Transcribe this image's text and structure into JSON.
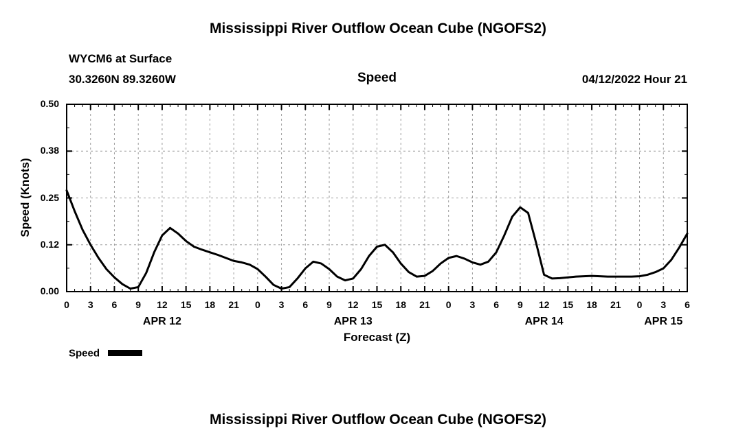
{
  "header": {
    "title": "Mississippi River Outflow Ocean Cube (NGOFS2)",
    "station": "WYCM6 at Surface",
    "coords": "30.3260N  89.3260W",
    "subtitle": "Speed",
    "datetime": "04/12/2022 Hour 21"
  },
  "footer": {
    "title": "Mississippi River Outflow Ocean Cube (NGOFS2)"
  },
  "chart_data": {
    "type": "line",
    "title": "Speed",
    "xlabel": "Forecast (Z)",
    "ylabel": "Speed (Knots)",
    "xlim": [
      0,
      78
    ],
    "ylim": [
      0,
      0.5
    ],
    "grid": true,
    "grid_color": "#9a9a9a",
    "line_color": "#000000",
    "yticks": {
      "values": [
        0,
        0.125,
        0.25,
        0.375,
        0.5
      ],
      "labels": [
        "0.00",
        "0.12",
        "0.25",
        "0.38",
        "0.50"
      ]
    },
    "xticks": {
      "hours": [
        0,
        3,
        6,
        9,
        12,
        15,
        18,
        21,
        24,
        27,
        30,
        33,
        36,
        39,
        42,
        45,
        48,
        51,
        54,
        57,
        60,
        63,
        66,
        69,
        72,
        75,
        78
      ],
      "labels": [
        "0",
        "3",
        "6",
        "9",
        "12",
        "15",
        "18",
        "21",
        "0",
        "3",
        "6",
        "9",
        "12",
        "15",
        "18",
        "21",
        "0",
        "3",
        "6",
        "9",
        "12",
        "15",
        "18",
        "21",
        "0",
        "3",
        "6"
      ]
    },
    "day_labels": [
      {
        "label": "APR 12",
        "hour": 12
      },
      {
        "label": "APR 13",
        "hour": 36
      },
      {
        "label": "APR 14",
        "hour": 60
      },
      {
        "label": "APR 15",
        "hour": 75
      }
    ],
    "legend": [
      {
        "name": "Speed",
        "color": "#000000"
      }
    ],
    "series": [
      {
        "name": "Speed",
        "points": [
          [
            0,
            0.27
          ],
          [
            1,
            0.215
          ],
          [
            2,
            0.165
          ],
          [
            3,
            0.125
          ],
          [
            4,
            0.09
          ],
          [
            5,
            0.06
          ],
          [
            6,
            0.038
          ],
          [
            7,
            0.02
          ],
          [
            8,
            0.008
          ],
          [
            9,
            0.012
          ],
          [
            10,
            0.05
          ],
          [
            11,
            0.105
          ],
          [
            12,
            0.15
          ],
          [
            13,
            0.17
          ],
          [
            14,
            0.155
          ],
          [
            15,
            0.135
          ],
          [
            16,
            0.12
          ],
          [
            17,
            0.112
          ],
          [
            18,
            0.105
          ],
          [
            19,
            0.098
          ],
          [
            20,
            0.09
          ],
          [
            21,
            0.082
          ],
          [
            22,
            0.078
          ],
          [
            23,
            0.072
          ],
          [
            24,
            0.06
          ],
          [
            25,
            0.04
          ],
          [
            26,
            0.018
          ],
          [
            27,
            0.008
          ],
          [
            28,
            0.012
          ],
          [
            29,
            0.035
          ],
          [
            30,
            0.062
          ],
          [
            31,
            0.08
          ],
          [
            32,
            0.075
          ],
          [
            33,
            0.06
          ],
          [
            34,
            0.04
          ],
          [
            35,
            0.03
          ],
          [
            36,
            0.035
          ],
          [
            37,
            0.06
          ],
          [
            38,
            0.095
          ],
          [
            39,
            0.12
          ],
          [
            40,
            0.125
          ],
          [
            41,
            0.105
          ],
          [
            42,
            0.075
          ],
          [
            43,
            0.052
          ],
          [
            44,
            0.04
          ],
          [
            45,
            0.042
          ],
          [
            46,
            0.055
          ],
          [
            47,
            0.075
          ],
          [
            48,
            0.09
          ],
          [
            49,
            0.095
          ],
          [
            50,
            0.088
          ],
          [
            51,
            0.078
          ],
          [
            52,
            0.072
          ],
          [
            53,
            0.08
          ],
          [
            54,
            0.105
          ],
          [
            55,
            0.15
          ],
          [
            56,
            0.2
          ],
          [
            57,
            0.225
          ],
          [
            58,
            0.21
          ],
          [
            59,
            0.13
          ],
          [
            60,
            0.045
          ],
          [
            61,
            0.035
          ],
          [
            62,
            0.036
          ],
          [
            63,
            0.038
          ],
          [
            64,
            0.04
          ],
          [
            65,
            0.041
          ],
          [
            66,
            0.042
          ],
          [
            67,
            0.041
          ],
          [
            68,
            0.04
          ],
          [
            69,
            0.04
          ],
          [
            70,
            0.04
          ],
          [
            71,
            0.04
          ],
          [
            72,
            0.041
          ],
          [
            73,
            0.045
          ],
          [
            74,
            0.052
          ],
          [
            75,
            0.062
          ],
          [
            76,
            0.085
          ],
          [
            77,
            0.118
          ],
          [
            78,
            0.155
          ]
        ]
      }
    ]
  }
}
